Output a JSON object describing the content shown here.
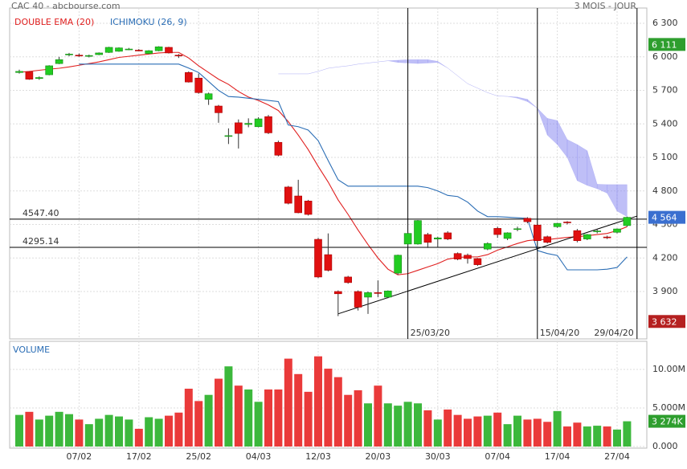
{
  "chart_data": {
    "type": "candlestick",
    "source": "CAC 40 - abcbourse.com",
    "period": "3 MOIS - JOUR",
    "categories": [
      null,
      null,
      null,
      null,
      null,
      null,
      "07/02",
      null,
      null,
      null,
      null,
      null,
      "17/02",
      null,
      null,
      null,
      null,
      null,
      "25/02",
      null,
      null,
      null,
      null,
      null,
      "04/03",
      null,
      null,
      null,
      null,
      null,
      "12/03",
      null,
      null,
      null,
      null,
      null,
      "20/03",
      null,
      null,
      null,
      null,
      null,
      "30/03",
      null,
      null,
      null,
      null,
      null,
      "07/04",
      null,
      null,
      null,
      null,
      null,
      "17/04",
      null,
      null,
      null,
      null,
      null,
      "27/04",
      null
    ],
    "open": [
      5860,
      5866,
      5806,
      5840,
      5940,
      6020,
      6015,
      6008,
      6020,
      6040,
      6050,
      6065,
      6060,
      6030,
      6055,
      6085,
      6015,
      5860,
      5810,
      5620,
      5560,
      5290,
      5410,
      5395,
      5375,
      5465,
      5235,
      4835,
      4755,
      4710,
      4367,
      4230,
      3900,
      4030,
      3900,
      3850,
      3890,
      3850,
      4065,
      4325,
      4325,
      4410,
      4370,
      4425,
      4240,
      4225,
      4195,
      4280,
      4465,
      4375,
      4460,
      4555,
      4495,
      4390,
      4480,
      4522,
      4445,
      4370,
      4438,
      4388,
      4430,
      4490
    ],
    "high": [
      5885,
      5870,
      5825,
      5925,
      6000,
      6035,
      6030,
      6020,
      6040,
      6090,
      6085,
      6080,
      6070,
      6060,
      6095,
      6090,
      6025,
      5870,
      5850,
      5680,
      5570,
      5360,
      5440,
      5450,
      5460,
      5480,
      5250,
      4845,
      4900,
      4720,
      4380,
      4420,
      3910,
      4040,
      3910,
      3900,
      4000,
      3910,
      4230,
      4430,
      4540,
      4425,
      4390,
      4440,
      4250,
      4240,
      4200,
      4340,
      4480,
      4430,
      4480,
      4565,
      4500,
      4400,
      4515,
      4530,
      4460,
      4415,
      4460,
      4400,
      4465,
      4570
    ],
    "low": [
      5850,
      5795,
      5795,
      5835,
      5935,
      6005,
      6000,
      5995,
      6015,
      6035,
      6045,
      6060,
      6050,
      6025,
      6050,
      6030,
      5990,
      5770,
      5670,
      5570,
      5410,
      5220,
      5180,
      5370,
      5370,
      5310,
      5110,
      4680,
      4600,
      4580,
      4020,
      4080,
      3680,
      3970,
      3730,
      3700,
      3850,
      3840,
      4050,
      4300,
      4320,
      4290,
      4300,
      4360,
      4180,
      4150,
      4130,
      4270,
      4380,
      4360,
      4440,
      4510,
      4350,
      4330,
      4470,
      4500,
      4340,
      4360,
      4420,
      4370,
      4420,
      4480
    ],
    "close": [
      5870,
      5800,
      5815,
      5920,
      5975,
      6025,
      6010,
      6012,
      6035,
      6085,
      6080,
      6070,
      6055,
      6055,
      6090,
      6035,
      6010,
      5775,
      5680,
      5670,
      5500,
      5295,
      5315,
      5405,
      5445,
      5320,
      5120,
      4690,
      4605,
      4590,
      4030,
      4090,
      3880,
      3980,
      3760,
      3890,
      3885,
      3905,
      4225,
      4420,
      4535,
      4340,
      4380,
      4370,
      4190,
      4195,
      4140,
      4330,
      4410,
      4425,
      4462,
      4525,
      4355,
      4340,
      4510,
      4518,
      4355,
      4410,
      4442,
      4385,
      4460,
      4564
    ],
    "up_color": "#22cc22",
    "down_color": "#e01010",
    "ylim": [
      3476,
      6437
    ],
    "yticks": [
      {
        "value": 3900,
        "label": "3 900"
      },
      {
        "value": 4200,
        "label": "4 200"
      },
      {
        "value": 4500,
        "label": "4 500"
      },
      {
        "value": 4800,
        "label": "4 800"
      },
      {
        "value": 5100,
        "label": "5 100"
      },
      {
        "value": 5400,
        "label": "5 400"
      },
      {
        "value": 5700,
        "label": "5 700"
      },
      {
        "value": 6000,
        "label": "6 000"
      },
      {
        "value": 6300,
        "label": "6 300"
      }
    ],
    "grid": true,
    "overlays": [
      {
        "name": "DOUBLE EMA (20)",
        "color": "#e02020",
        "values": [
          5862,
          5870,
          5880,
          5890,
          5898,
          5910,
          5925,
          5940,
          5955,
          5975,
          5995,
          6005,
          6015,
          6025,
          6035,
          6040,
          6040,
          5990,
          5920,
          5860,
          5800,
          5754,
          5690,
          5640,
          5610,
          5570,
          5520,
          5420,
          5300,
          5170,
          5020,
          4880,
          4720,
          4590,
          4450,
          4320,
          4200,
          4100,
          4050,
          4060,
          4090,
          4120,
          4150,
          4190,
          4205,
          4210,
          4210,
          4230,
          4270,
          4300,
          4330,
          4355,
          4365,
          4365,
          4375,
          4385,
          4390,
          4400,
          4410,
          4420,
          4445,
          4480
        ]
      },
      {
        "name": "ICHIMOKU (26, 9)",
        "color": "#2a6db5",
        "cloud_color": "#8a8af0",
        "values": [
          null,
          null,
          null,
          null,
          null,
          null,
          5935,
          5935,
          5935,
          5935,
          5935,
          5935,
          5935,
          5935,
          5935,
          5935,
          5935,
          5900,
          5860,
          5780,
          5700,
          5645,
          5640,
          5630,
          5620,
          5610,
          5600,
          5390,
          5375,
          5345,
          5250,
          5072,
          4900,
          4843,
          4843,
          4843,
          4843,
          4843,
          4843,
          4843,
          4843,
          4830,
          4800,
          4760,
          4750,
          4700,
          4620,
          4570,
          4570,
          4565,
          4560,
          4555,
          4267,
          4240,
          4223,
          4094,
          4094,
          4094,
          4094,
          4100,
          4115,
          4210
        ],
        "cloud_a": [
          null,
          null,
          null,
          null,
          null,
          null,
          null,
          null,
          null,
          null,
          null,
          null,
          null,
          null,
          null,
          null,
          null,
          null,
          null,
          null,
          null,
          null,
          null,
          null,
          null,
          null,
          5848,
          5848,
          5848,
          5848,
          5870,
          5898,
          5910,
          5920,
          5935,
          5945,
          5955,
          5965,
          5970,
          5975,
          5975,
          5975,
          5960,
          5900,
          5830,
          5760,
          5720,
          5680,
          5650,
          5646,
          5640,
          5620,
          5540,
          5450,
          5430,
          5260,
          5215,
          5160,
          4860,
          4857,
          4857,
          4857
        ],
        "cloud_b": [
          null,
          null,
          null,
          null,
          null,
          null,
          null,
          null,
          null,
          null,
          null,
          null,
          null,
          null,
          null,
          null,
          null,
          null,
          null,
          null,
          null,
          null,
          null,
          null,
          null,
          null,
          5848,
          5848,
          5848,
          5848,
          5870,
          5898,
          5910,
          5920,
          5935,
          5945,
          5955,
          5965,
          5950,
          5945,
          5940,
          5945,
          5950,
          5900,
          5830,
          5760,
          5720,
          5680,
          5650,
          5646,
          5630,
          5600,
          5540,
          5300,
          5215,
          5100,
          4892,
          4850,
          4820,
          4780,
          4620,
          4570
        ]
      }
    ],
    "levels": [
      {
        "value": 4547.4,
        "label": "4547.40"
      },
      {
        "value": 4295.14
      }
    ],
    "markers": [
      {
        "x": 39,
        "label": "25/03/20"
      },
      {
        "x": 52,
        "label": "15/04/20"
      },
      {
        "x": 62,
        "label": "29/04/20"
      }
    ],
    "trendline": {
      "x": [
        32,
        62
      ],
      "y": [
        3700,
        4575
      ]
    },
    "badges": [
      {
        "value": 6111,
        "label": "6 111",
        "color": "#2e9e2e"
      },
      {
        "value": 4564,
        "label": "4 564",
        "color": "#3a6fd0"
      },
      {
        "value": 3632,
        "label": "3 632",
        "color": "#b52020"
      }
    ],
    "volume": {
      "title": "VOLUME",
      "values": [
        4100000,
        4500000,
        3500000,
        4000000,
        4500000,
        4200000,
        3500000,
        2900000,
        3600000,
        4100000,
        3900000,
        3500000,
        2300000,
        3800000,
        3600000,
        4000000,
        4400000,
        7500000,
        5900000,
        6700000,
        8800000,
        10400000,
        7900000,
        7400000,
        5800000,
        7400000,
        7400000,
        11400000,
        9400000,
        7100000,
        11700000,
        10100000,
        9000000,
        6700000,
        7300000,
        5600000,
        7900000,
        5600000,
        5300000,
        5800000,
        5600000,
        4700000,
        3500000,
        4800000,
        4100000,
        3600000,
        3900000,
        4000000,
        4400000,
        2900000,
        4000000,
        3500000,
        3600000,
        3200000,
        4600000,
        2600000,
        3100000,
        2600000,
        2700000,
        2600000,
        2200000,
        3274000
      ],
      "ylim": [
        0,
        13650000
      ],
      "yticks": [
        {
          "value": 0,
          "label": "0.000"
        },
        {
          "value": 5000000,
          "label": "5.000M"
        },
        {
          "value": 10000000,
          "label": "10.00M"
        }
      ],
      "badge": {
        "value": 3274000,
        "label": "3 274K",
        "color": "#2e9e2e"
      }
    }
  }
}
